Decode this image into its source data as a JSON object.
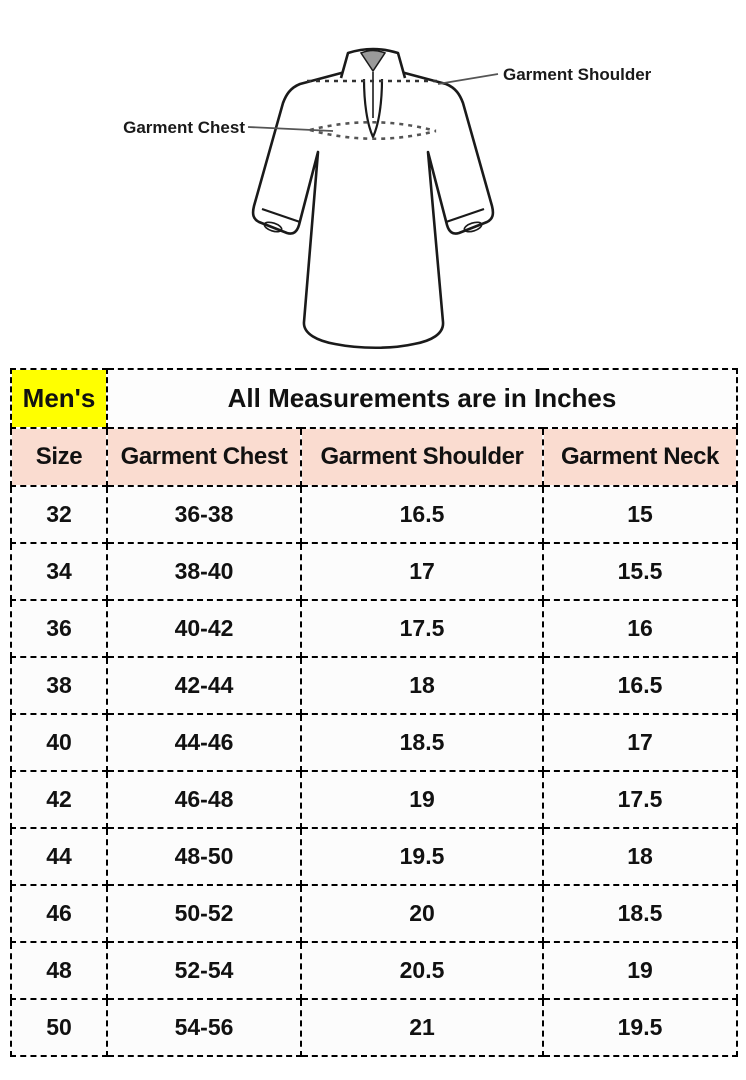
{
  "diagram": {
    "shoulder_label": "Garment Shoulder",
    "chest_label": "Garment Chest"
  },
  "table": {
    "category_label": "Men's",
    "title": "All Measurements are in Inches",
    "columns": [
      "Size",
      "Garment Chest",
      "Garment Shoulder",
      "Garment Neck"
    ],
    "rows": [
      [
        "32",
        "36-38",
        "16.5",
        "15"
      ],
      [
        "34",
        "38-40",
        "17",
        "15.5"
      ],
      [
        "36",
        "40-42",
        "17.5",
        "16"
      ],
      [
        "38",
        "42-44",
        "18",
        "16.5"
      ],
      [
        "40",
        "44-46",
        "18.5",
        "17"
      ],
      [
        "42",
        "46-48",
        "19",
        "17.5"
      ],
      [
        "44",
        "48-50",
        "19.5",
        "18"
      ],
      [
        "46",
        "50-52",
        "20",
        "18.5"
      ],
      [
        "48",
        "52-54",
        "20.5",
        "19"
      ],
      [
        "50",
        "54-56",
        "21",
        "19.5"
      ]
    ]
  },
  "colors": {
    "highlight_yellow": "#ffff00",
    "header_peach": "#fadcd0",
    "row_background": "#fcfcfc",
    "border": "#000000",
    "line_art": "#1a1a1a"
  }
}
